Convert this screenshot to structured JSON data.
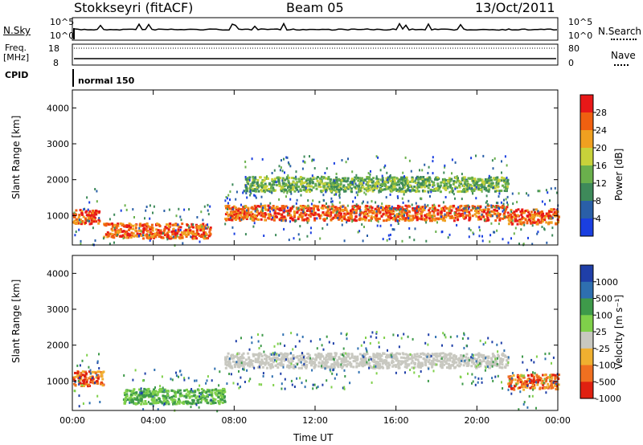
{
  "header": {
    "station": "Stokkseyri (fitACF)",
    "beam": "Beam 05",
    "date": "13/Oct/2011"
  },
  "sky_panel": {
    "left_label": "N.Sky",
    "right_label": "N.Search",
    "left_ticks": [
      "10^5",
      "10^0"
    ],
    "right_ticks": [
      "10^5",
      "10^0"
    ]
  },
  "freq_panel": {
    "left_label_line1": "Freq.",
    "left_label_line2": "[MHz]",
    "right_label": "Nave",
    "left_ticks": [
      "18",
      "8"
    ],
    "right_ticks": [
      "80",
      "0"
    ]
  },
  "cpid_panel": {
    "label": "CPID",
    "mode": "normal 150"
  },
  "colors": {
    "power_scale": [
      "#1a3fe0",
      "#2a5fa8",
      "#3e8a5a",
      "#6ab04c",
      "#c8d23a",
      "#f0a020",
      "#f06010",
      "#e81818"
    ],
    "velocity_scale": [
      "#1f3fa8",
      "#2e6fb0",
      "#3e9a4a",
      "#7fd04a",
      "#c8c8c0",
      "#f0b030",
      "#f07020",
      "#e02010"
    ]
  },
  "chart_data": [
    {
      "type": "heatmap",
      "title": "",
      "xlabel": "",
      "ylabel": "Slant Range [km]",
      "x_ticks": [
        "00:00",
        "04:00",
        "08:00",
        "12:00",
        "16:00",
        "20:00",
        "00:00"
      ],
      "xlim_hours": [
        0,
        24
      ],
      "y_ticks": [
        1000,
        2000,
        3000,
        4000
      ],
      "ylim": [
        180,
        4500
      ],
      "colorbar": {
        "label": "Power [dB]",
        "ticks": [
          "28",
          "24",
          "20",
          "16",
          "12",
          "8",
          "4"
        ]
      },
      "features": [
        {
          "start_hour": 0.0,
          "end_hour": 1.3,
          "range_km": 1000,
          "level": "high"
        },
        {
          "start_hour": 7.5,
          "end_hour": 21.5,
          "range_km": 1100,
          "level": "high"
        },
        {
          "start_hour": 8.5,
          "end_hour": 21.5,
          "range_km": 1900,
          "level": "medium"
        },
        {
          "start_hour": 1.5,
          "end_hour": 6.8,
          "range_km": 600,
          "level": "high"
        },
        {
          "start_hour": 21.5,
          "end_hour": 24.0,
          "range_km": 1000,
          "level": "high"
        }
      ]
    },
    {
      "type": "heatmap",
      "title": "",
      "xlabel": "Time UT",
      "ylabel": "Slant Range [km]",
      "x_ticks": [
        "00:00",
        "04:00",
        "08:00",
        "12:00",
        "16:00",
        "20:00",
        "00:00"
      ],
      "xlim_hours": [
        0,
        24
      ],
      "y_ticks": [
        1000,
        2000,
        3000,
        4000
      ],
      "ylim": [
        180,
        4500
      ],
      "colorbar": {
        "label": "Velocity [m s⁻¹]",
        "ticks": [
          "1000",
          "500",
          "100",
          "25",
          "-25",
          "-100",
          "-500",
          "-1000"
        ]
      },
      "features": [
        {
          "start_hour": 0.0,
          "end_hour": 1.5,
          "range_km": 1100,
          "velocity": "-500"
        },
        {
          "start_hour": 7.5,
          "end_hour": 21.5,
          "range_km": 1600,
          "velocity": "0"
        },
        {
          "start_hour": 21.5,
          "end_hour": 24.0,
          "range_km": 1000,
          "velocity": "-500"
        },
        {
          "start_hour": 2.5,
          "end_hour": 7.5,
          "range_km": 600,
          "velocity": "100"
        }
      ]
    }
  ]
}
